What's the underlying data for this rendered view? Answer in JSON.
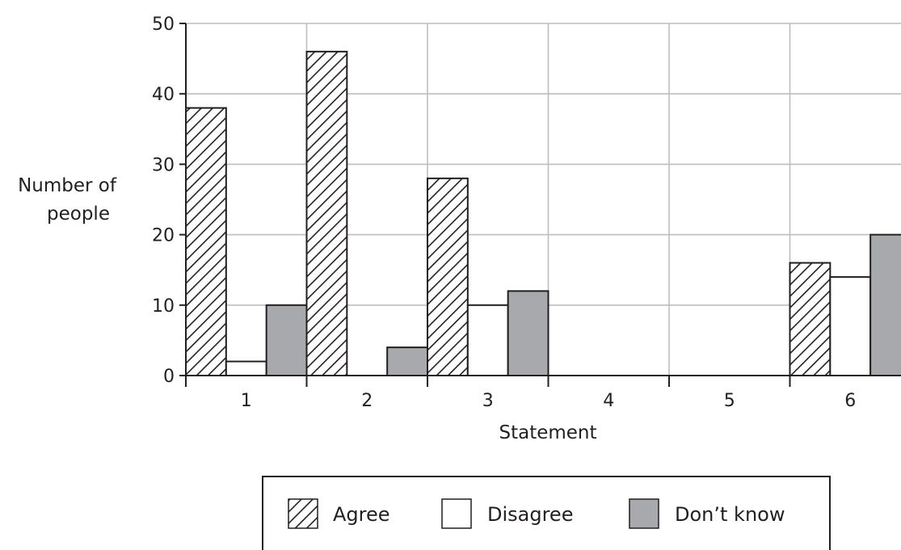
{
  "chart_data": {
    "type": "bar",
    "title": "",
    "xlabel": "Statement",
    "ylabel_lines": [
      "Number of",
      "people"
    ],
    "categories": [
      "1",
      "2",
      "3",
      "4",
      "5",
      "6"
    ],
    "ylim": [
      0,
      50
    ],
    "yticks": [
      "0",
      "10",
      "20",
      "30",
      "40",
      "50"
    ],
    "grid": true,
    "series": [
      {
        "name": "Agree",
        "pattern": "hatched",
        "color": "#ffffff",
        "values": [
          38,
          46,
          28,
          0,
          0,
          16
        ]
      },
      {
        "name": "Disagree",
        "pattern": "none",
        "color": "#ffffff",
        "values": [
          2,
          0,
          10,
          0,
          0,
          14
        ]
      },
      {
        "name": "Don’t know",
        "pattern": "none",
        "color": "#a7a9ac",
        "values": [
          10,
          4,
          12,
          0,
          0,
          20
        ]
      }
    ],
    "legend_position": "bottom"
  },
  "colors": {
    "grid": "#bcbec0",
    "axis": "#231f20",
    "dont_know_fill": "#a7a9ac"
  }
}
